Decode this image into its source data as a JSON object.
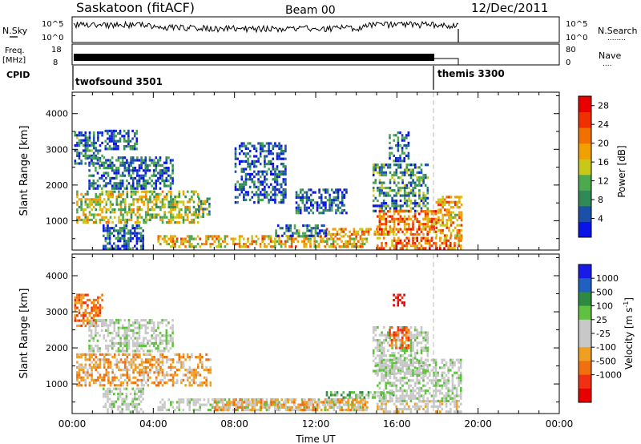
{
  "header": {
    "station": "Saskatoon (fitACF)",
    "beam": "Beam 00",
    "date": "12/Dec/2011"
  },
  "noise_panel": {
    "left_label": "N.Sky",
    "right_label": "N.Search",
    "right_dots": "........",
    "left_ticks": [
      "10^5",
      "10^0"
    ],
    "right_ticks": [
      "10^5",
      "10^0"
    ]
  },
  "freq_panel": {
    "left_label_1": "Freq.",
    "left_label_2": "[MHz]",
    "left_ticks": [
      "18",
      "8"
    ],
    "right_label": "Nave",
    "right_dots": "....",
    "right_ticks": [
      "80",
      "0"
    ]
  },
  "cpid": {
    "label": "CPID",
    "modes": [
      {
        "name": "twofsound 3501",
        "start_hour": 0.0
      },
      {
        "name": "themis 3300",
        "start_hour": 18.0
      }
    ]
  },
  "colors": {
    "power": [
      "#0a14e6",
      "#1c50a8",
      "#2f8a58",
      "#4ea84e",
      "#c8c818",
      "#f0a000",
      "#f07000",
      "#f03000",
      "#e80000"
    ],
    "velocity": [
      "#1a1ae6",
      "#2060c0",
      "#2e8a40",
      "#60c040",
      "#c8c8c8",
      "#c8c8c8",
      "#f0a020",
      "#f07010",
      "#f03010",
      "#e80000"
    ]
  },
  "chart_data": [
    {
      "type": "heatmap",
      "name": "power-panel",
      "ylabel": "Slant Range [km]",
      "xlim": [
        0,
        24
      ],
      "ylim": [
        180,
        4600
      ],
      "yticks": [
        "1000",
        "2000",
        "3000",
        "4000"
      ],
      "colorbar": {
        "label": "Power [dB]",
        "ticks": [
          "4",
          "8",
          "12",
          "16",
          "20",
          "24",
          "28"
        ],
        "range": [
          0,
          30
        ]
      },
      "regions": [
        {
          "t0": 0.2,
          "t1": 6.2,
          "r0": 950,
          "r1": 1850,
          "v": 14
        },
        {
          "t0": 6.2,
          "t1": 6.8,
          "r0": 1100,
          "r1": 1650,
          "v": 12
        },
        {
          "t0": 0.1,
          "t1": 1.5,
          "r0": 2600,
          "r1": 3500,
          "v": 6
        },
        {
          "t0": 0.8,
          "t1": 5.0,
          "r0": 1900,
          "r1": 2800,
          "v": 5
        },
        {
          "t0": 1.6,
          "t1": 3.2,
          "r0": 3000,
          "r1": 3550,
          "v": 4
        },
        {
          "t0": 1.5,
          "t1": 3.5,
          "r0": 250,
          "r1": 900,
          "v": 5
        },
        {
          "t0": 4.2,
          "t1": 14.5,
          "r0": 300,
          "r1": 600,
          "v": 18
        },
        {
          "t0": 12.5,
          "t1": 15.8,
          "r0": 620,
          "r1": 800,
          "v": 21
        },
        {
          "t0": 10.0,
          "t1": 12.5,
          "r0": 600,
          "r1": 900,
          "v": 6
        },
        {
          "t0": 14.8,
          "t1": 17.5,
          "r0": 1300,
          "r1": 2600,
          "v": 8
        },
        {
          "t0": 15.0,
          "t1": 17.9,
          "r0": 600,
          "r1": 1300,
          "v": 22
        },
        {
          "t0": 17.9,
          "t1": 19.2,
          "r0": 500,
          "r1": 1700,
          "v": 20
        },
        {
          "t0": 15.0,
          "t1": 19.2,
          "r0": 250,
          "r1": 550,
          "v": 22
        },
        {
          "t0": 15.6,
          "t1": 16.6,
          "r0": 2700,
          "r1": 3500,
          "v": 6
        },
        {
          "t0": 11.0,
          "t1": 13.5,
          "r0": 1200,
          "r1": 1900,
          "v": 4
        },
        {
          "t0": 8.0,
          "t1": 10.5,
          "r0": 1500,
          "r1": 3200,
          "v": 4
        }
      ]
    },
    {
      "type": "heatmap",
      "name": "velocity-panel",
      "ylabel": "Slant Range [km]",
      "xlim": [
        0,
        24
      ],
      "ylim": [
        180,
        4600
      ],
      "xlabel": "Time UT",
      "xticks": [
        "00:00",
        "04:00",
        "08:00",
        "12:00",
        "16:00",
        "20:00",
        "00:00"
      ],
      "yticks": [
        "1000",
        "2000",
        "3000",
        "4000"
      ],
      "colorbar": {
        "label_main": "Velocity [m s",
        "label_sup": "-1",
        "label_end": "]",
        "ticks": [
          "1000",
          "500",
          "100",
          "25",
          "-25",
          "-100",
          "-500",
          "-1000"
        ]
      },
      "regions": [
        {
          "t0": 0.2,
          "t1": 6.8,
          "r0": 950,
          "r1": 1850,
          "v": 6
        },
        {
          "t0": 0.1,
          "t1": 1.5,
          "r0": 2600,
          "r1": 3500,
          "v": 7
        },
        {
          "t0": 1.5,
          "t1": 3.5,
          "r0": 250,
          "r1": 900,
          "v": 4
        },
        {
          "t0": 0.8,
          "t1": 5.0,
          "r0": 1900,
          "r1": 2800,
          "v": 4
        },
        {
          "t0": 4.2,
          "t1": 14.5,
          "r0": 300,
          "r1": 600,
          "v": 4
        },
        {
          "t0": 7.0,
          "t1": 14.5,
          "r0": 300,
          "r1": 600,
          "v": 6
        },
        {
          "t0": 12.5,
          "t1": 15.8,
          "r0": 620,
          "r1": 800,
          "v": 3
        },
        {
          "t0": 14.8,
          "t1": 17.5,
          "r0": 1300,
          "r1": 2600,
          "v": 4
        },
        {
          "t0": 15.0,
          "t1": 19.2,
          "r0": 500,
          "r1": 1700,
          "v": 4
        },
        {
          "t0": 15.0,
          "t1": 19.2,
          "r0": 250,
          "r1": 550,
          "v": 5
        },
        {
          "t0": 15.6,
          "t1": 16.6,
          "r0": 2000,
          "r1": 2600,
          "v": 7
        },
        {
          "t0": 15.8,
          "t1": 16.4,
          "r0": 3200,
          "r1": 3500,
          "v": 9
        }
      ]
    }
  ]
}
